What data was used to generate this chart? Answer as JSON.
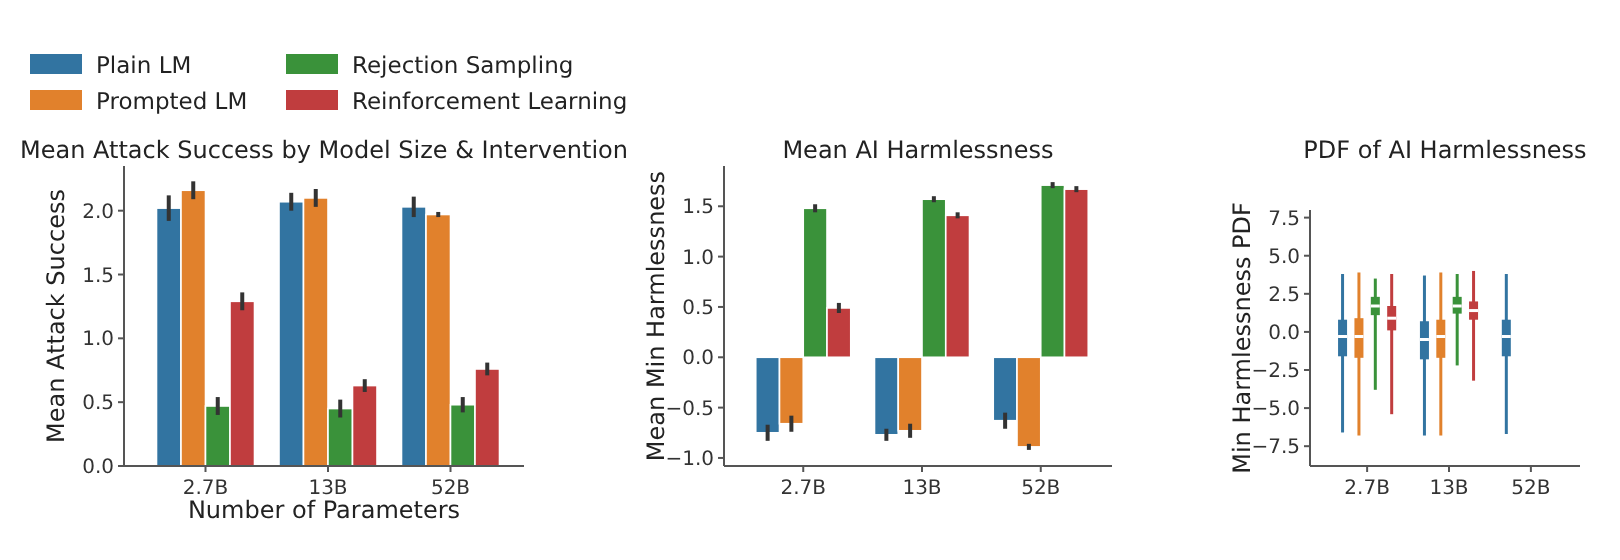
{
  "chart_data": [
    {
      "type": "bar",
      "title": "Mean Attack Success by Model Size & Intervention",
      "xlabel": "Number of Parameters",
      "ylabel": "Mean Attack Success",
      "categories": [
        "2.7B",
        "13B",
        "52B"
      ],
      "ylim": [
        0,
        2.35
      ],
      "yticks": [
        {
          "value": 0,
          "label": "0.0"
        },
        {
          "value": 0.5,
          "label": "0.5"
        },
        {
          "value": 1,
          "label": "1.0"
        },
        {
          "value": 1.5,
          "label": "1.5"
        },
        {
          "value": 2,
          "label": "2.0"
        }
      ],
      "legend": "top",
      "series": [
        {
          "name": "Plain LM",
          "color": "#3274a1",
          "values": [
            2.02,
            2.07,
            2.03
          ],
          "errors": [
            0.1,
            0.07,
            0.08
          ]
        },
        {
          "name": "Prompted LM",
          "color": "#e1812c",
          "values": [
            2.16,
            2.1,
            1.97
          ],
          "errors": [
            0.07,
            0.07,
            0.02
          ]
        },
        {
          "name": "Rejection Sampling",
          "color": "#3a923a",
          "values": [
            0.47,
            0.45,
            0.48
          ],
          "errors": [
            0.07,
            0.07,
            0.06
          ]
        },
        {
          "name": "Reinforcement Learning",
          "color": "#c03d3e",
          "values": [
            1.29,
            0.63,
            0.76
          ],
          "errors": [
            0.07,
            0.05,
            0.05
          ]
        }
      ]
    },
    {
      "type": "bar",
      "title": "Mean AI Harmlessness",
      "ylabel": "Mean Min Harmlessness",
      "categories": [
        "2.7B",
        "13B",
        "52B"
      ],
      "ylim": [
        -1.08,
        1.9
      ],
      "yticks": [
        {
          "value": -1,
          "label": "−1.0"
        },
        {
          "value": -0.5,
          "label": "−0.5"
        },
        {
          "value": 0,
          "label": "0.0"
        },
        {
          "value": 0.5,
          "label": "0.5"
        },
        {
          "value": 1,
          "label": "1.0"
        },
        {
          "value": 1.5,
          "label": "1.5"
        }
      ],
      "series": [
        {
          "color": "#3274a1",
          "values": [
            -0.75,
            -0.77,
            -0.63
          ],
          "errors": [
            0.08,
            0.06,
            0.08
          ]
        },
        {
          "color": "#e1812c",
          "values": [
            -0.66,
            -0.73,
            -0.89
          ],
          "errors": [
            0.08,
            0.07,
            0.03
          ]
        },
        {
          "color": "#3a923a",
          "values": [
            1.48,
            1.57,
            1.71
          ],
          "errors": [
            0.04,
            0.03,
            0.03
          ]
        },
        {
          "color": "#c03d3e",
          "values": [
            0.49,
            1.41,
            1.67
          ],
          "errors": [
            0.05,
            0.03,
            0.03
          ]
        }
      ]
    },
    {
      "type": "box",
      "title": "PDF of AI Harmlessness",
      "ylabel": "Min Harmlessness PDF",
      "categories": [
        "2.7B",
        "13B",
        "52B"
      ],
      "ylim": [
        -8.8,
        8.0
      ],
      "yticks": [
        {
          "value": -7.5,
          "label": "−7.5"
        },
        {
          "value": -5,
          "label": "−5.0"
        },
        {
          "value": -2.5,
          "label": "−2.5"
        },
        {
          "value": 0,
          "label": "0.0"
        },
        {
          "value": 2.5,
          "label": "2.5"
        },
        {
          "value": 5,
          "label": "5.0"
        },
        {
          "value": 7.5,
          "label": "7.5"
        }
      ],
      "series": [
        {
          "color": "#3274a1",
          "boxes": [
            {
              "low": -6.6,
              "q1": -1.6,
              "median": -0.3,
              "q3": 0.8,
              "high": 3.8
            },
            {
              "low": -6.8,
              "q1": -1.8,
              "median": -0.5,
              "q3": 0.7,
              "high": 3.7
            },
            {
              "low": -6.7,
              "q1": -1.6,
              "median": -0.3,
              "q3": 0.8,
              "high": 3.8
            }
          ]
        },
        {
          "color": "#e1812c",
          "boxes": [
            {
              "low": -6.8,
              "q1": -1.7,
              "median": -0.3,
              "q3": 0.9,
              "high": 3.9
            },
            {
              "low": -6.8,
              "q1": -1.7,
              "median": -0.3,
              "q3": 0.8,
              "high": 3.9
            },
            null
          ]
        },
        {
          "color": "#3a923a",
          "boxes": [
            {
              "low": -3.8,
              "q1": 1.1,
              "median": 1.7,
              "q3": 2.3,
              "high": 3.5
            },
            {
              "low": -2.2,
              "q1": 1.2,
              "median": 1.7,
              "q3": 2.3,
              "high": 3.8
            },
            null
          ]
        },
        {
          "color": "#c03d3e",
          "boxes": [
            {
              "low": -5.4,
              "q1": 0.1,
              "median": 0.9,
              "q3": 1.7,
              "high": 3.8
            },
            {
              "low": -3.2,
              "q1": 0.8,
              "median": 1.4,
              "q3": 2.0,
              "high": 4.0
            },
            null
          ]
        }
      ]
    }
  ]
}
